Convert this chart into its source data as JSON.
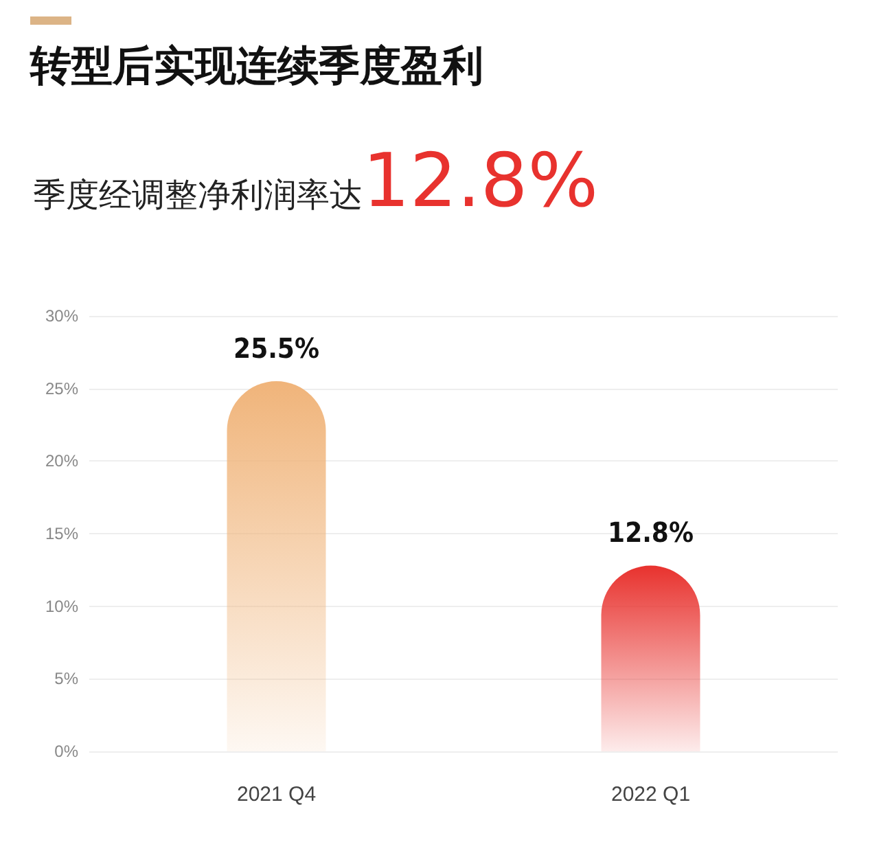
{
  "chart_data": {
    "type": "bar",
    "title": "转型后实现连续季度盈利",
    "subtitle": "季度经调整净利润率达12.8%",
    "categories": [
      "2021 Q4",
      "2022 Q1"
    ],
    "values": [
      25.5,
      12.8
    ],
    "colors": [
      "#f0b47a",
      "#e8322e"
    ],
    "value_labels": [
      "25.5%",
      "12.8%"
    ],
    "ylim": [
      0,
      30
    ],
    "yticks": [
      {
        "value": 0,
        "label": "0%"
      },
      {
        "value": 5,
        "label": "5%"
      },
      {
        "value": 10,
        "label": "10%"
      },
      {
        "value": 15,
        "label": "15%"
      },
      {
        "value": 20,
        "label": "20%"
      },
      {
        "value": 25,
        "label": "25%"
      },
      {
        "value": 30,
        "label": "30%"
      }
    ],
    "grid": "y"
  }
}
